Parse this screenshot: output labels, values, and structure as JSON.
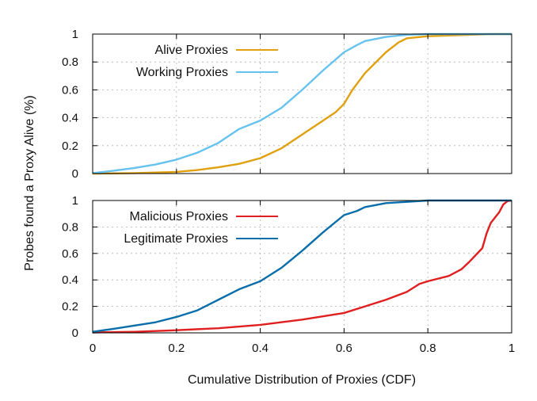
{
  "chart_data": [
    {
      "type": "line",
      "panel": "top",
      "xlim": [
        0,
        1
      ],
      "ylim": [
        0,
        1
      ],
      "x_ticks": [
        "0",
        "0.2",
        "0.4",
        "0.6",
        "0.8",
        "1"
      ],
      "y_ticks": [
        "0",
        "0.2",
        "0.4",
        "0.6",
        "0.8",
        "1"
      ],
      "show_x_tick_labels": false,
      "grid": true,
      "legend_position": "top-left",
      "series": [
        {
          "name": "Alive Proxies",
          "color": "#E0A010",
          "points": [
            [
              0,
              0
            ],
            [
              0.1,
              0.003
            ],
            [
              0.2,
              0.012
            ],
            [
              0.25,
              0.025
            ],
            [
              0.3,
              0.045
            ],
            [
              0.35,
              0.07
            ],
            [
              0.4,
              0.11
            ],
            [
              0.45,
              0.18
            ],
            [
              0.5,
              0.28
            ],
            [
              0.55,
              0.38
            ],
            [
              0.58,
              0.44
            ],
            [
              0.6,
              0.5
            ],
            [
              0.62,
              0.6
            ],
            [
              0.65,
              0.72
            ],
            [
              0.7,
              0.87
            ],
            [
              0.73,
              0.94
            ],
            [
              0.75,
              0.97
            ],
            [
              0.8,
              0.985
            ],
            [
              0.9,
              0.995
            ],
            [
              0.95,
              1.0
            ],
            [
              1.0,
              1.0
            ]
          ]
        },
        {
          "name": "Working Proxies",
          "color": "#66C2EE",
          "points": [
            [
              0,
              0.003
            ],
            [
              0.05,
              0.02
            ],
            [
              0.1,
              0.04
            ],
            [
              0.15,
              0.065
            ],
            [
              0.2,
              0.1
            ],
            [
              0.25,
              0.15
            ],
            [
              0.3,
              0.22
            ],
            [
              0.35,
              0.32
            ],
            [
              0.4,
              0.38
            ],
            [
              0.45,
              0.47
            ],
            [
              0.5,
              0.6
            ],
            [
              0.55,
              0.74
            ],
            [
              0.6,
              0.87
            ],
            [
              0.63,
              0.92
            ],
            [
              0.65,
              0.95
            ],
            [
              0.7,
              0.98
            ],
            [
              0.75,
              0.995
            ],
            [
              0.8,
              1.0
            ],
            [
              1.0,
              1.0
            ]
          ]
        }
      ]
    },
    {
      "type": "line",
      "panel": "bottom",
      "xlim": [
        0,
        1
      ],
      "ylim": [
        0,
        1
      ],
      "x_ticks": [
        "0",
        "0.2",
        "0.4",
        "0.6",
        "0.8",
        "1"
      ],
      "y_ticks": [
        "0",
        "0.2",
        "0.4",
        "0.6",
        "0.8",
        "1"
      ],
      "show_x_tick_labels": true,
      "grid": true,
      "legend_position": "top-left",
      "series": [
        {
          "name": "Malicious Proxies",
          "color": "#E02020",
          "points": [
            [
              0,
              0.003
            ],
            [
              0.1,
              0.008
            ],
            [
              0.2,
              0.02
            ],
            [
              0.3,
              0.035
            ],
            [
              0.4,
              0.06
            ],
            [
              0.5,
              0.1
            ],
            [
              0.6,
              0.15
            ],
            [
              0.65,
              0.2
            ],
            [
              0.7,
              0.25
            ],
            [
              0.75,
              0.31
            ],
            [
              0.78,
              0.37
            ],
            [
              0.8,
              0.39
            ],
            [
              0.85,
              0.43
            ],
            [
              0.88,
              0.48
            ],
            [
              0.9,
              0.54
            ],
            [
              0.93,
              0.64
            ],
            [
              0.94,
              0.75
            ],
            [
              0.95,
              0.83
            ],
            [
              0.97,
              0.91
            ],
            [
              0.98,
              0.97
            ],
            [
              0.99,
              0.995
            ],
            [
              1.0,
              1.0
            ]
          ]
        },
        {
          "name": "Legitimate Proxies",
          "color": "#0A6EAA",
          "points": [
            [
              0,
              0.008
            ],
            [
              0.05,
              0.03
            ],
            [
              0.1,
              0.055
            ],
            [
              0.15,
              0.08
            ],
            [
              0.2,
              0.12
            ],
            [
              0.25,
              0.17
            ],
            [
              0.3,
              0.25
            ],
            [
              0.35,
              0.33
            ],
            [
              0.4,
              0.39
            ],
            [
              0.45,
              0.49
            ],
            [
              0.5,
              0.62
            ],
            [
              0.55,
              0.76
            ],
            [
              0.6,
              0.89
            ],
            [
              0.63,
              0.92
            ],
            [
              0.65,
              0.95
            ],
            [
              0.7,
              0.98
            ],
            [
              0.75,
              0.99
            ],
            [
              0.8,
              1.0
            ],
            [
              1.0,
              1.0
            ]
          ]
        }
      ]
    }
  ],
  "axis": {
    "ylabel": "Probes found a Proxy Alive (%)",
    "xlabel": "Cumulative Distribution of Proxies (CDF)"
  }
}
